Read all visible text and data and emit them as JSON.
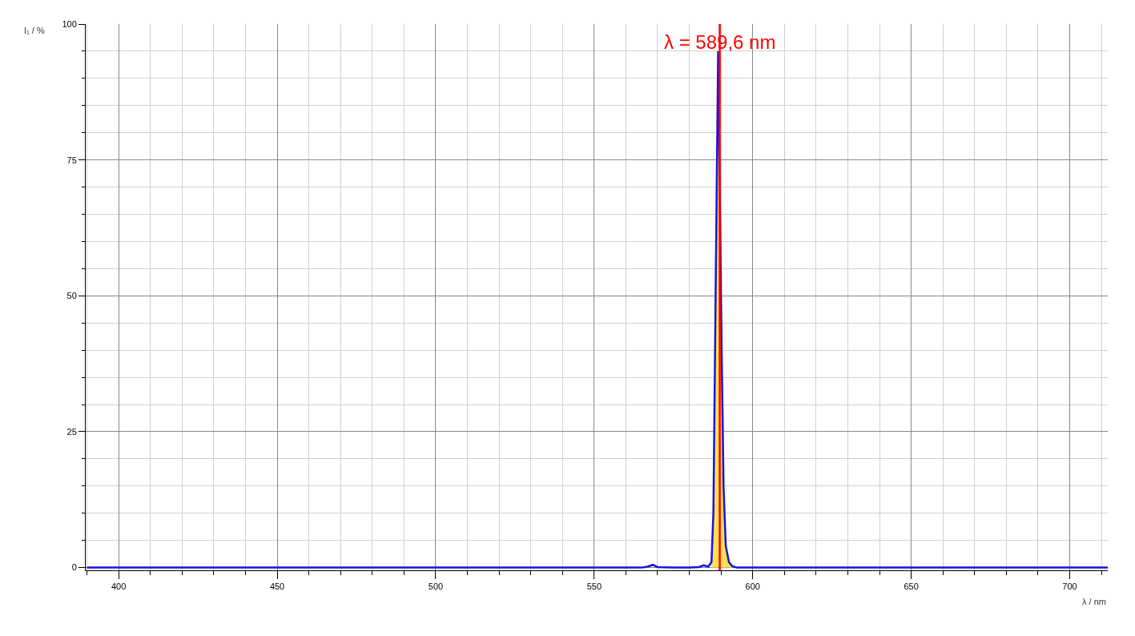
{
  "chart_data": {
    "type": "line",
    "xlabel": "λ / nm",
    "ylabel": "I₁ / %",
    "xlim": [
      389.6,
      712
    ],
    "xticks": [
      400,
      450,
      500,
      550,
      600,
      650,
      700
    ],
    "ylim": [
      -0.5,
      100
    ],
    "yticks": [
      0,
      25,
      50,
      75,
      100
    ],
    "grid": true,
    "marker": "none",
    "line_style": "solid",
    "series": [
      {
        "type": "area",
        "color": "#ffe14d",
        "x": [
          587,
          587.6,
          588.3,
          589.1,
          589.6,
          590.2,
          590.8,
          591.5,
          592.5,
          593.5
        ],
        "values": [
          1,
          10,
          50,
          95,
          70,
          40,
          15,
          4,
          1,
          0.3
        ]
      },
      {
        "color": "#1414e0",
        "x": [
          390,
          400,
          420,
          450,
          500,
          530,
          550,
          560,
          565,
          567,
          568.5,
          570,
          575,
          580,
          583,
          584.5,
          586,
          587,
          587.6,
          588.3,
          589.1,
          589.6,
          590.2,
          590.8,
          591.5,
          592.5,
          593.5,
          595,
          600,
          620,
          650,
          680,
          700,
          712
        ],
        "values": [
          0,
          0,
          0,
          0,
          0,
          0,
          0,
          0,
          0,
          0.2,
          0.5,
          0.1,
          0,
          0,
          0.1,
          0.4,
          0.2,
          1,
          10,
          50,
          95,
          70,
          40,
          15,
          4,
          1,
          0.3,
          0,
          0,
          0,
          0,
          0,
          0,
          0
        ]
      }
    ],
    "ref_lines": [
      {
        "axis": "x",
        "value": 589.6,
        "label": "λ = 589,6 nm",
        "color": "#ff0000",
        "line_style": "solid"
      }
    ]
  }
}
